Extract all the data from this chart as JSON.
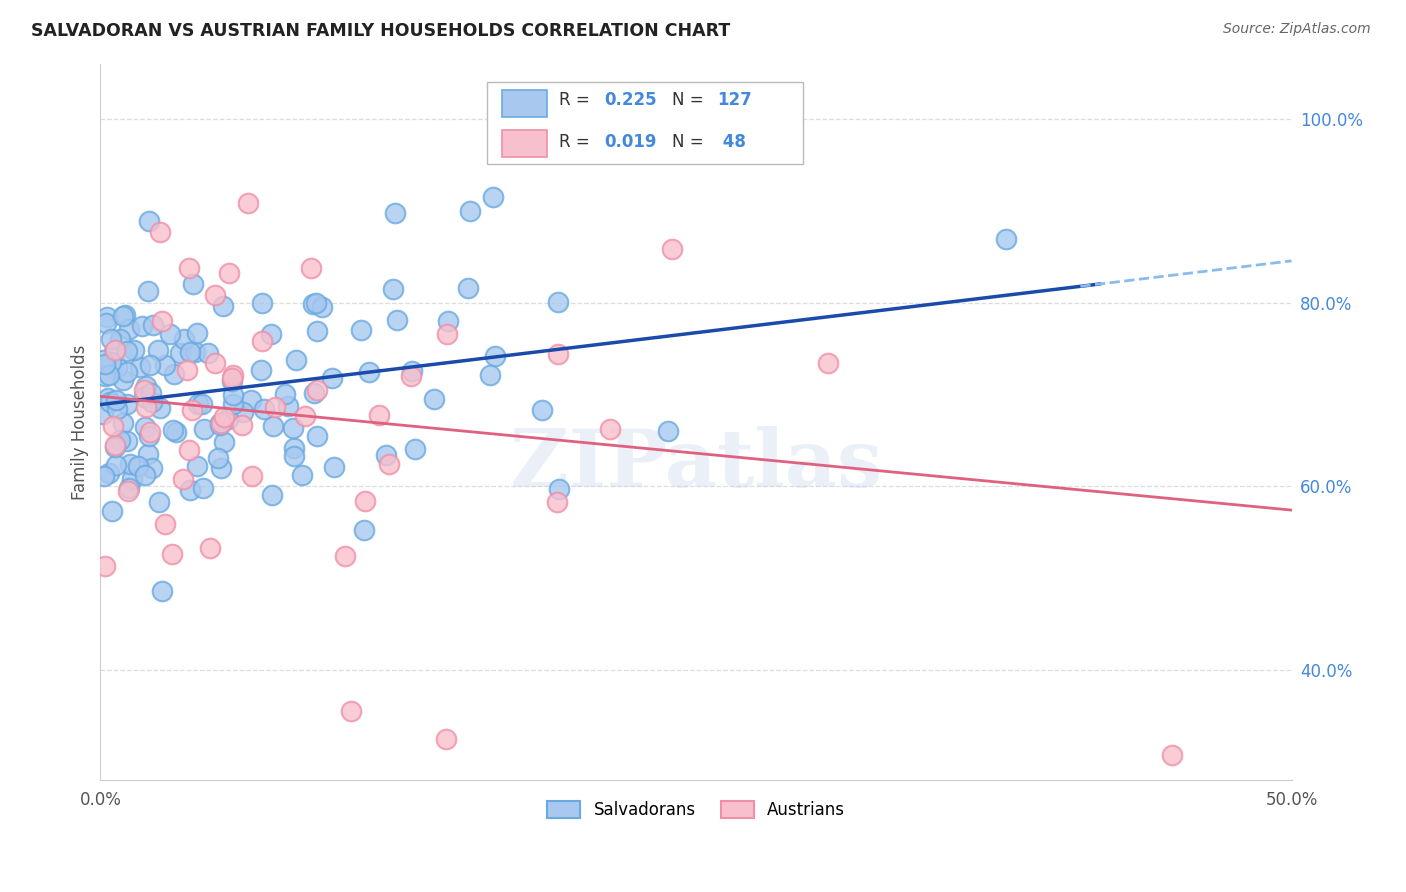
{
  "title": "SALVADORAN VS AUSTRIAN FAMILY HOUSEHOLDS CORRELATION CHART",
  "source": "Source: ZipAtlas.com",
  "ylabel": "Family Households",
  "xlim": [
    0.0,
    0.5
  ],
  "ylim": [
    0.28,
    1.06
  ],
  "x_ticks": [
    0.0,
    0.1,
    0.2,
    0.3,
    0.4,
    0.5
  ],
  "x_tick_labels": [
    "0.0%",
    "",
    "",
    "",
    "",
    "50.0%"
  ],
  "y_ticks_right": [
    0.4,
    0.6,
    0.8,
    1.0
  ],
  "y_tick_labels_right": [
    "40.0%",
    "60.0%",
    "80.0%",
    "100.0%"
  ],
  "blue_face": "#A8C8F0",
  "blue_edge": "#6AAAE0",
  "pink_face": "#F8C0CC",
  "pink_edge": "#F090A8",
  "blue_line_color": "#1A4BAA",
  "blue_dash_color": "#88BBEE",
  "pink_line_color": "#E06080",
  "R_blue": 0.225,
  "N_blue": 127,
  "R_pink": 0.019,
  "N_pink": 48,
  "watermark": "ZIPatlas",
  "legend_labels": [
    "Salvadorans",
    "Austrians"
  ],
  "background_color": "#ffffff",
  "grid_color": "#DDDDDD",
  "title_color": "#222222",
  "source_color": "#666666",
  "ylabel_color": "#555555",
  "tick_color": "#555555",
  "right_tick_color": "#4488DD",
  "stat_box_border": "#BBBBBB"
}
